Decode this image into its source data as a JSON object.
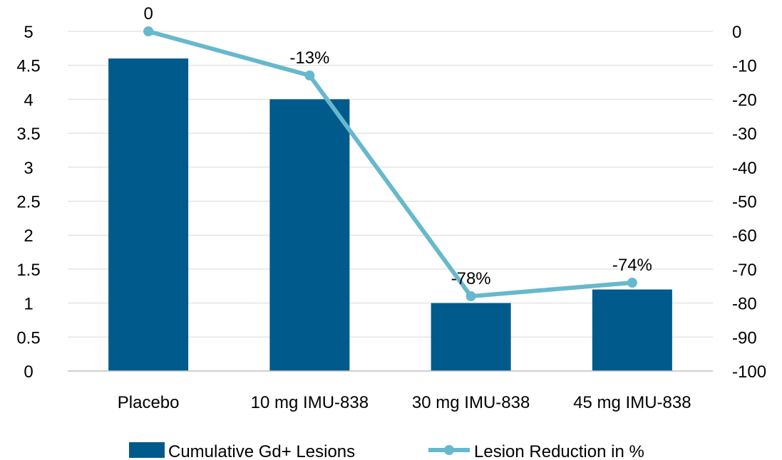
{
  "chart_data": {
    "type": "bar",
    "categories": [
      "Placebo",
      "10 mg IMU-838",
      "30 mg IMU-838",
      "45 mg IMU-838"
    ],
    "series": [
      {
        "name": "Cumulative Gd+ Lesions",
        "chart_type": "bar",
        "axis": "left",
        "values": [
          4.6,
          4.0,
          1.0,
          1.2
        ],
        "color": "#005a8c"
      },
      {
        "name": "Lesion Reduction in %",
        "chart_type": "line",
        "axis": "right",
        "values": [
          0,
          -13,
          -78,
          -74
        ],
        "data_labels": [
          "0",
          "-13%",
          "-78%",
          "-74%"
        ],
        "color": "#67b8cd"
      }
    ],
    "y_left": {
      "ylim": [
        0,
        5
      ],
      "ticks": [
        "0",
        "0.5",
        "1",
        "1.5",
        "2",
        "2.5",
        "3",
        "3.5",
        "4",
        "4.5",
        "5"
      ]
    },
    "y_right": {
      "ylim": [
        -100,
        0
      ],
      "ticks": [
        "0",
        "-10",
        "-20",
        "-30",
        "-40",
        "-50",
        "-60",
        "-70",
        "-80",
        "-90",
        "-100"
      ]
    },
    "grid": true,
    "legend_position": "bottom"
  }
}
